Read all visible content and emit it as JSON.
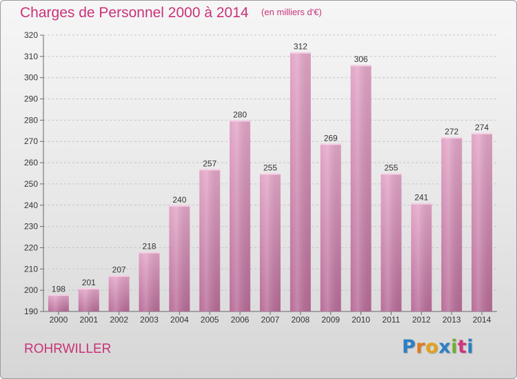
{
  "header": {
    "title": "Charges de Personnel 2000 à 2014",
    "subtitle": "(en milliers d'€)"
  },
  "footer": {
    "town": "ROHRWILLER",
    "logo_letters": [
      "P",
      "r",
      "o",
      "x",
      "i",
      "t",
      "i"
    ],
    "logo_colors": [
      "#2b7fc3",
      "#e07b1f",
      "#e3a21a",
      "#2b7fc3",
      "#6fb02e",
      "#d2357e",
      "#2b7fc3"
    ]
  },
  "chart_data": {
    "type": "bar",
    "categories": [
      "2000",
      "2001",
      "2002",
      "2003",
      "2004",
      "2005",
      "2006",
      "2007",
      "2008",
      "2009",
      "2010",
      "2011",
      "2012",
      "2013",
      "2014"
    ],
    "values": [
      198,
      201,
      207,
      218,
      240,
      257,
      280,
      255,
      312,
      269,
      306,
      255,
      241,
      272,
      274
    ],
    "title": "Charges de Personnel 2000 à 2014",
    "subtitle": "(en milliers d'€)",
    "xlabel": "",
    "ylabel": "",
    "ylim": [
      190,
      320
    ],
    "yticks": [
      190,
      200,
      210,
      220,
      230,
      240,
      250,
      260,
      270,
      280,
      290,
      300,
      310,
      320
    ],
    "grid": true,
    "bar_color": "#d48ab4"
  }
}
